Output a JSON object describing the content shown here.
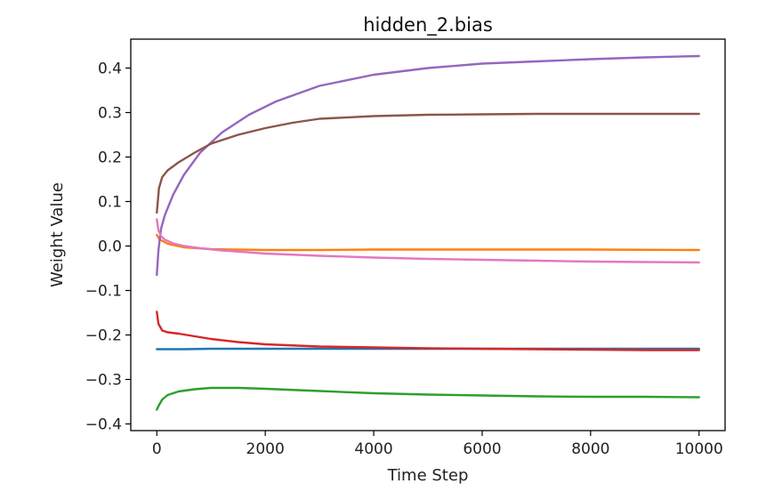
{
  "chart_data": {
    "type": "line",
    "title": "hidden_2.bias",
    "xlabel": "Time Step",
    "ylabel": "Weight Value",
    "xlim": [
      -480,
      10480
    ],
    "ylim": [
      -0.415,
      0.465
    ],
    "xticks": [
      0,
      2000,
      4000,
      6000,
      8000,
      10000
    ],
    "xtick_labels": [
      "0",
      "2000",
      "4000",
      "6000",
      "8000",
      "10000"
    ],
    "yticks": [
      -0.4,
      -0.3,
      -0.2,
      -0.1,
      0.0,
      0.1,
      0.2,
      0.3,
      0.4
    ],
    "ytick_labels": [
      "−0.4",
      "−0.3",
      "−0.2",
      "−0.1",
      "0.0",
      "0.1",
      "0.2",
      "0.3",
      "0.4"
    ],
    "grid": false,
    "legend": "none",
    "series": [
      {
        "color": "#1f77b4",
        "x": [
          0,
          500,
          1000,
          2000,
          4000,
          6000,
          8000,
          10000
        ],
        "y": [
          -0.232,
          -0.232,
          -0.231,
          -0.231,
          -0.231,
          -0.231,
          -0.231,
          -0.231
        ]
      },
      {
        "color": "#ff7f0e",
        "x": [
          0,
          50,
          200,
          500,
          1000,
          2000,
          3000,
          4000,
          6000,
          8000,
          10000
        ],
        "y": [
          0.025,
          0.015,
          0.005,
          -0.003,
          -0.007,
          -0.009,
          -0.009,
          -0.008,
          -0.008,
          -0.008,
          -0.009
        ]
      },
      {
        "color": "#2ca02c",
        "x": [
          0,
          30,
          100,
          200,
          400,
          700,
          1000,
          1500,
          2000,
          3000,
          4000,
          5000,
          6000,
          7000,
          8000,
          9000,
          10000
        ],
        "y": [
          -0.368,
          -0.36,
          -0.345,
          -0.335,
          -0.327,
          -0.322,
          -0.319,
          -0.319,
          -0.321,
          -0.326,
          -0.331,
          -0.334,
          -0.336,
          -0.338,
          -0.339,
          -0.339,
          -0.34
        ]
      },
      {
        "color": "#d62728",
        "x": [
          0,
          30,
          100,
          200,
          400,
          700,
          1000,
          1500,
          2000,
          3000,
          4000,
          5000,
          6000,
          7000,
          8000,
          9000,
          10000
        ],
        "y": [
          -0.148,
          -0.175,
          -0.19,
          -0.194,
          -0.197,
          -0.203,
          -0.209,
          -0.216,
          -0.221,
          -0.226,
          -0.228,
          -0.23,
          -0.231,
          -0.232,
          -0.233,
          -0.234,
          -0.234
        ]
      },
      {
        "color": "#9467bd",
        "x": [
          0,
          30,
          80,
          150,
          300,
          500,
          800,
          1200,
          1700,
          2200,
          3000,
          4000,
          5000,
          6000,
          7000,
          8000,
          9000,
          10000
        ],
        "y": [
          -0.065,
          -0.01,
          0.04,
          0.07,
          0.115,
          0.16,
          0.21,
          0.255,
          0.295,
          0.325,
          0.36,
          0.385,
          0.4,
          0.41,
          0.415,
          0.42,
          0.424,
          0.427
        ]
      },
      {
        "color": "#8c564b",
        "x": [
          0,
          40,
          100,
          200,
          400,
          700,
          1000,
          1500,
          2000,
          2500,
          3000,
          4000,
          5000,
          6000,
          7000,
          8000,
          9000,
          10000
        ],
        "y": [
          0.075,
          0.13,
          0.155,
          0.17,
          0.188,
          0.21,
          0.23,
          0.25,
          0.265,
          0.277,
          0.286,
          0.292,
          0.295,
          0.296,
          0.297,
          0.297,
          0.297,
          0.297
        ]
      },
      {
        "color": "#e377c2",
        "x": [
          0,
          30,
          80,
          150,
          300,
          500,
          800,
          1200,
          2000,
          3000,
          4000,
          5000,
          6000,
          7000,
          8000,
          9000,
          10000
        ],
        "y": [
          0.06,
          0.035,
          0.022,
          0.014,
          0.006,
          0.0,
          -0.005,
          -0.01,
          -0.017,
          -0.022,
          -0.026,
          -0.029,
          -0.031,
          -0.033,
          -0.035,
          -0.036,
          -0.037
        ]
      }
    ]
  }
}
